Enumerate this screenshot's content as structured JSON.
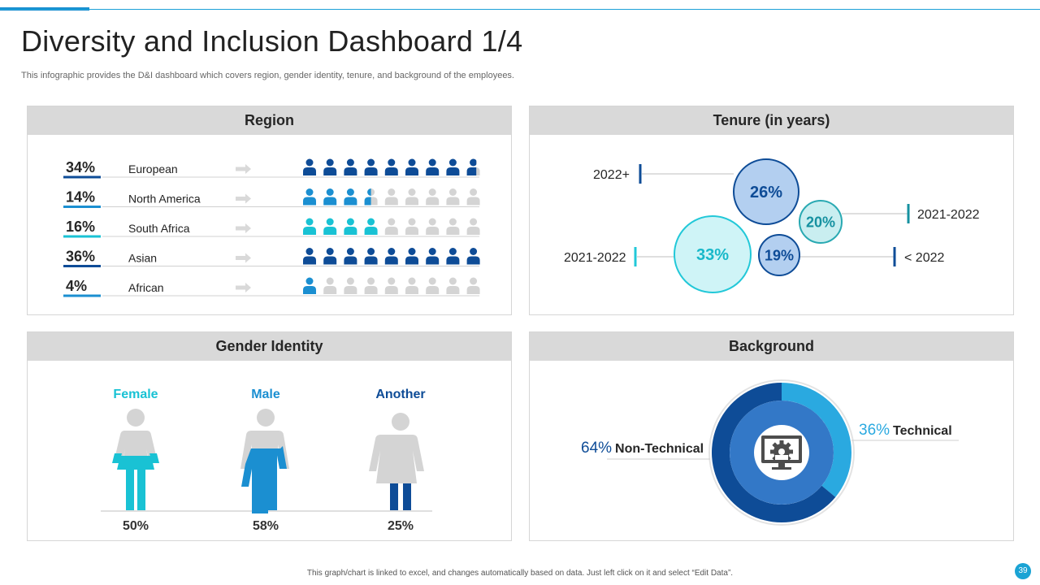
{
  "page": {
    "title": "Diversity and Inclusion Dashboard 1/4",
    "subtitle": "This infographic provides the D&I dashboard which covers region, gender identity, tenure, and background of the employees.",
    "footer": "This graph/chart is linked to excel, and changes automatically based on data. Just left click on it and select “Edit Data”.",
    "page_number": "39"
  },
  "colors": {
    "dark_blue": "#0e4c97",
    "mid_blue": "#1b8fd1",
    "teal": "#19c2d4",
    "light_grey": "#d9d9d9",
    "grey_figure": "#d4d4d4"
  },
  "chart_data": [
    {
      "type": "table",
      "title": "Region",
      "icon": "person-icon",
      "rows": [
        {
          "label": "European",
          "percent": 34,
          "display": "34%",
          "icons_filled": 8.7,
          "color": "#0e4c97"
        },
        {
          "label": "North America",
          "percent": 14,
          "display": "14%",
          "icons_filled": 3.5,
          "color": "#1b8fd1"
        },
        {
          "label": "South Africa",
          "percent": 16,
          "display": "16%",
          "icons_filled": 4,
          "color": "#19c2d4"
        },
        {
          "label": "Asian",
          "percent": 36,
          "display": "36%",
          "icons_filled": 9,
          "color": "#0e4c97"
        },
        {
          "label": "African",
          "percent": 4,
          "display": "4%",
          "icons_filled": 1,
          "color": "#1b8fd1"
        }
      ],
      "icons_per_row": 9
    },
    {
      "type": "scatter",
      "title": "Tenure (in years)",
      "bubbles": [
        {
          "label": "2022+",
          "value": 26,
          "display": "26%"
        },
        {
          "label": "2021-2022",
          "value": 20,
          "display": "20%"
        },
        {
          "label": "2021-2022",
          "value": 33,
          "display": "33%"
        },
        {
          "label": "< 2022",
          "value": 19,
          "display": "19%"
        }
      ]
    },
    {
      "type": "bar",
      "title": "Gender Identity",
      "categories": [
        "Female",
        "Male",
        "Another"
      ],
      "values": [
        50,
        58,
        25
      ],
      "displays": [
        "50%",
        "58%",
        "25%"
      ]
    },
    {
      "type": "pie",
      "title": "Background",
      "slices": [
        {
          "label": "Technical",
          "value": 36,
          "display": "36%",
          "color": "#2aa9e0"
        },
        {
          "label": "Non-Technical",
          "value": 64,
          "display": "64%",
          "color": "#0e4c97"
        }
      ]
    }
  ]
}
